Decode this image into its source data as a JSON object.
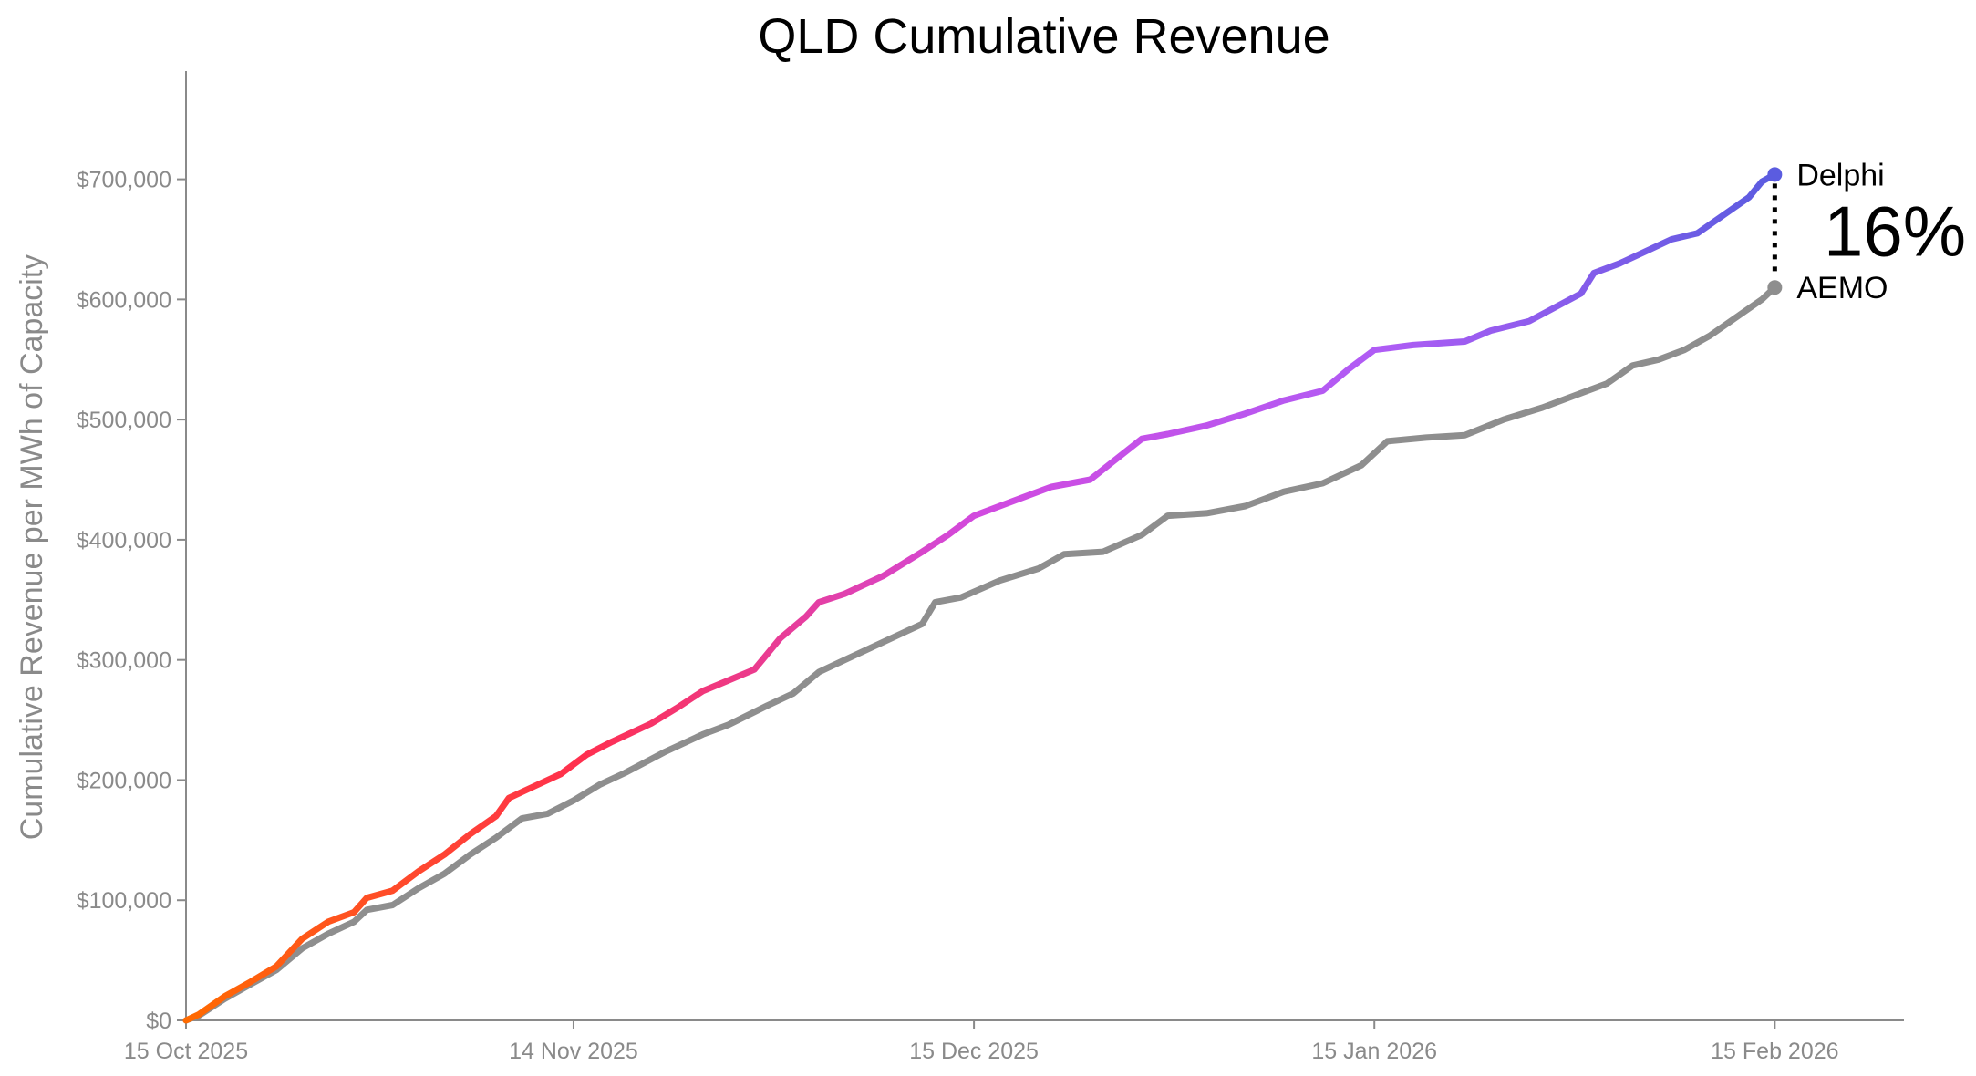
{
  "chart_data": {
    "type": "line",
    "title": "QLD Cumulative Revenue",
    "xlabel": "",
    "ylabel": "Cumulative Revenue per MWh of Capacity",
    "x_axis": {
      "kind": "date",
      "range": [
        "2025-10-15",
        "2026-02-25"
      ],
      "ticks": [
        {
          "date": "2025-10-15",
          "label": "15 Oct 2025"
        },
        {
          "date": "2025-11-14",
          "label": "14 Nov 2025"
        },
        {
          "date": "2025-12-15",
          "label": "15 Dec 2025"
        },
        {
          "date": "2026-01-15",
          "label": "15 Jan 2026"
        },
        {
          "date": "2026-02-15",
          "label": "15 Feb 2026"
        }
      ]
    },
    "y_axis": {
      "range": [
        0,
        790000
      ],
      "ticks": [
        {
          "value": 0,
          "label": "$0"
        },
        {
          "value": 100000,
          "label": "$100,000"
        },
        {
          "value": 200000,
          "label": "$200,000"
        },
        {
          "value": 300000,
          "label": "$300,000"
        },
        {
          "value": 400000,
          "label": "$400,000"
        },
        {
          "value": 500000,
          "label": "$500,000"
        },
        {
          "value": 600000,
          "label": "$600,000"
        },
        {
          "value": 700000,
          "label": "$700,000"
        }
      ]
    },
    "grid": false,
    "legend": "none",
    "series": [
      {
        "name": "Delphi",
        "color_gradient": [
          "#ff6a00",
          "#ff2f4f",
          "#d14ae0",
          "#b05cf5",
          "#5b5ce0"
        ],
        "points": [
          [
            "2025-10-15",
            0
          ],
          [
            "2025-10-16",
            5000
          ],
          [
            "2025-10-18",
            20000
          ],
          [
            "2025-10-20",
            32000
          ],
          [
            "2025-10-22",
            45000
          ],
          [
            "2025-10-24",
            68000
          ],
          [
            "2025-10-26",
            82000
          ],
          [
            "2025-10-28",
            90000
          ],
          [
            "2025-10-29",
            102000
          ],
          [
            "2025-10-31",
            108000
          ],
          [
            "2025-11-02",
            124000
          ],
          [
            "2025-11-04",
            138000
          ],
          [
            "2025-11-06",
            155000
          ],
          [
            "2025-11-08",
            170000
          ],
          [
            "2025-11-09",
            185000
          ],
          [
            "2025-11-11",
            195000
          ],
          [
            "2025-11-13",
            205000
          ],
          [
            "2025-11-15",
            221000
          ],
          [
            "2025-11-17",
            232000
          ],
          [
            "2025-11-20",
            247000
          ],
          [
            "2025-11-22",
            260000
          ],
          [
            "2025-11-24",
            274000
          ],
          [
            "2025-11-26",
            283000
          ],
          [
            "2025-11-28",
            292000
          ],
          [
            "2025-11-30",
            318000
          ],
          [
            "2025-12-02",
            336000
          ],
          [
            "2025-12-03",
            348000
          ],
          [
            "2025-12-05",
            355000
          ],
          [
            "2025-12-08",
            370000
          ],
          [
            "2025-12-11",
            390000
          ],
          [
            "2025-12-13",
            404000
          ],
          [
            "2025-12-15",
            420000
          ],
          [
            "2025-12-18",
            432000
          ],
          [
            "2025-12-21",
            444000
          ],
          [
            "2025-12-24",
            450000
          ],
          [
            "2025-12-26",
            467000
          ],
          [
            "2025-12-28",
            484000
          ],
          [
            "2025-12-30",
            488000
          ],
          [
            "2026-01-02",
            495000
          ],
          [
            "2026-01-05",
            505000
          ],
          [
            "2026-01-08",
            516000
          ],
          [
            "2026-01-11",
            524000
          ],
          [
            "2026-01-13",
            542000
          ],
          [
            "2026-01-15",
            558000
          ],
          [
            "2026-01-18",
            562000
          ],
          [
            "2026-01-22",
            565000
          ],
          [
            "2026-01-24",
            574000
          ],
          [
            "2026-01-27",
            582000
          ],
          [
            "2026-01-31",
            605000
          ],
          [
            "2026-02-01",
            622000
          ],
          [
            "2026-02-03",
            630000
          ],
          [
            "2026-02-05",
            640000
          ],
          [
            "2026-02-07",
            650000
          ],
          [
            "2026-02-09",
            655000
          ],
          [
            "2026-02-11",
            670000
          ],
          [
            "2026-02-13",
            685000
          ],
          [
            "2026-02-14",
            698000
          ],
          [
            "2026-02-15",
            704000
          ]
        ],
        "end_label": "Delphi"
      },
      {
        "name": "AEMO",
        "color": "#8e8e8e",
        "points": [
          [
            "2025-10-15",
            0
          ],
          [
            "2025-10-16",
            4000
          ],
          [
            "2025-10-18",
            18000
          ],
          [
            "2025-10-20",
            30000
          ],
          [
            "2025-10-22",
            42000
          ],
          [
            "2025-10-24",
            60000
          ],
          [
            "2025-10-26",
            72000
          ],
          [
            "2025-10-28",
            82000
          ],
          [
            "2025-10-29",
            92000
          ],
          [
            "2025-10-31",
            96000
          ],
          [
            "2025-11-02",
            110000
          ],
          [
            "2025-11-04",
            122000
          ],
          [
            "2025-11-06",
            138000
          ],
          [
            "2025-11-08",
            152000
          ],
          [
            "2025-11-10",
            168000
          ],
          [
            "2025-11-12",
            172000
          ],
          [
            "2025-11-14",
            183000
          ],
          [
            "2025-11-16",
            196000
          ],
          [
            "2025-11-18",
            206000
          ],
          [
            "2025-11-21",
            223000
          ],
          [
            "2025-11-24",
            238000
          ],
          [
            "2025-11-26",
            246000
          ],
          [
            "2025-11-29",
            262000
          ],
          [
            "2025-12-01",
            272000
          ],
          [
            "2025-12-03",
            290000
          ],
          [
            "2025-12-05",
            300000
          ],
          [
            "2025-12-08",
            315000
          ],
          [
            "2025-12-11",
            330000
          ],
          [
            "2025-12-12",
            348000
          ],
          [
            "2025-12-14",
            352000
          ],
          [
            "2025-12-17",
            366000
          ],
          [
            "2025-12-20",
            376000
          ],
          [
            "2025-12-22",
            388000
          ],
          [
            "2025-12-25",
            390000
          ],
          [
            "2025-12-28",
            404000
          ],
          [
            "2025-12-30",
            420000
          ],
          [
            "2026-01-02",
            422000
          ],
          [
            "2026-01-05",
            428000
          ],
          [
            "2026-01-08",
            440000
          ],
          [
            "2026-01-11",
            447000
          ],
          [
            "2026-01-14",
            462000
          ],
          [
            "2026-01-16",
            482000
          ],
          [
            "2026-01-19",
            485000
          ],
          [
            "2026-01-22",
            487000
          ],
          [
            "2026-01-25",
            500000
          ],
          [
            "2026-01-28",
            510000
          ],
          [
            "2026-01-31",
            522000
          ],
          [
            "2026-02-02",
            530000
          ],
          [
            "2026-02-04",
            545000
          ],
          [
            "2026-02-06",
            550000
          ],
          [
            "2026-02-08",
            558000
          ],
          [
            "2026-02-10",
            570000
          ],
          [
            "2026-02-12",
            585000
          ],
          [
            "2026-02-14",
            600000
          ],
          [
            "2026-02-15",
            610000
          ]
        ],
        "end_label": "AEMO"
      }
    ],
    "annotations": [
      {
        "type": "gap",
        "between": [
          "Delphi",
          "AEMO"
        ],
        "at": "2026-02-15",
        "text": "16%"
      }
    ]
  }
}
